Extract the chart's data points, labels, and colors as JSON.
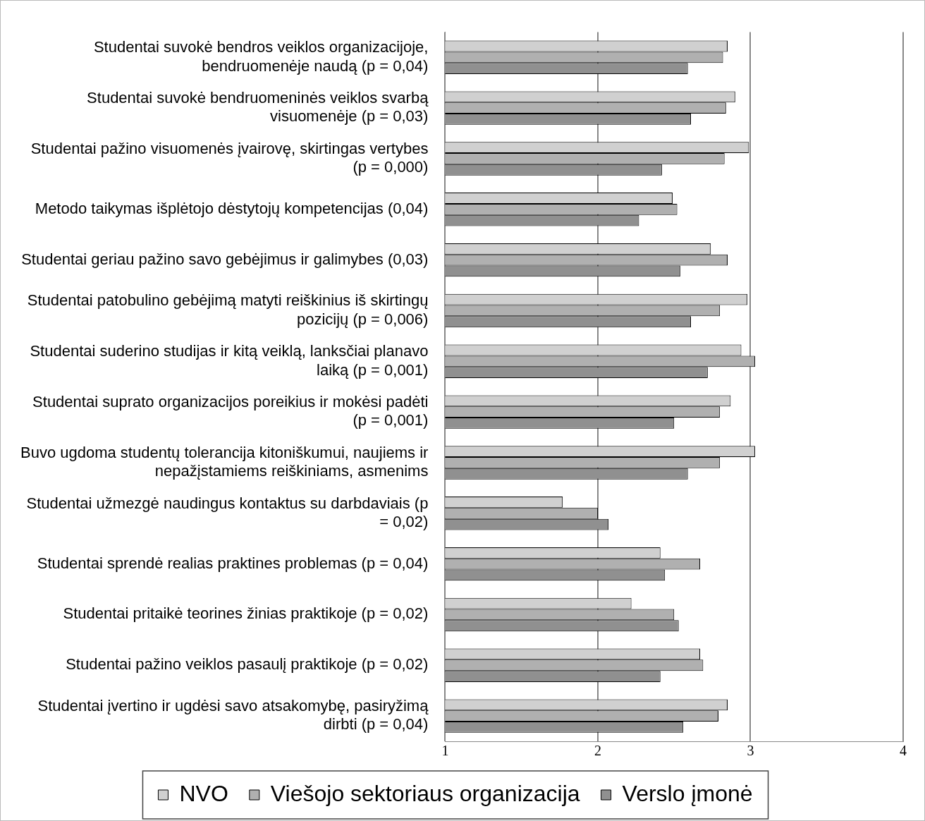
{
  "chart_data": {
    "type": "bar",
    "orientation": "horizontal",
    "categories": [
      "Studentai suvokė bendros veiklos organizacijoje, bendruomenėje naudą (p = 0,04)",
      "Studentai suvokė bendruomeninės veiklos svarbą visuomenėje (p = 0,03)",
      "Studentai pažino visuomenės įvairovę, skirtingas vertybes (p = 0,000)",
      "Metodo taikymas išplėtojo dėstytojų kompetencijas (0,04)",
      "Studentai geriau pažino savo gebėjimus ir galimybes (0,03)",
      "Studentai patobulino gebėjimą matyti reiškinius iš skirtingų pozicijų (p = 0,006)",
      "Studentai suderino studijas ir kitą veiklą, lanksčiai planavo laiką (p = 0,001)",
      "Studentai suprato organizacijos poreikius ir mokėsi padėti (p = 0,001)",
      "Buvo ugdoma studentų tolerancija kitoniškumui, naujiems ir nepažįstamiems reiškiniams, asmenims",
      "Studentai užmezgė naudingus kontaktus su darbdaviais (p = 0,02)",
      "Studentai sprendė realias praktines problemas (p = 0,04)",
      "Studentai pritaikė teorines žinias praktikoje (p = 0,02)",
      "Studentai pažino veiklos pasaulį praktikoje (p = 0,02)",
      "Studentai įvertino ir ugdėsi savo atsakomybę, pasiryžimą dirbti (p = 0,04)"
    ],
    "series": [
      {
        "name": "NVO",
        "color": "#d0d0d0",
        "values": [
          2.85,
          2.9,
          2.99,
          2.49,
          2.74,
          2.98,
          2.94,
          2.87,
          3.03,
          1.77,
          2.41,
          2.22,
          2.67,
          2.85
        ]
      },
      {
        "name": "Viešojo sektoriaus organizacija",
        "color": "#b0b0b0",
        "values": [
          2.82,
          2.84,
          2.83,
          2.52,
          2.85,
          2.8,
          3.03,
          2.8,
          2.8,
          2.0,
          2.67,
          2.5,
          2.69,
          2.79
        ]
      },
      {
        "name": "Verslo įmonė",
        "color": "#909090",
        "values": [
          2.59,
          2.61,
          2.42,
          2.27,
          2.54,
          2.61,
          2.72,
          2.5,
          2.59,
          2.07,
          2.44,
          2.53,
          2.41,
          2.56
        ]
      }
    ],
    "xlim": [
      1,
      4
    ],
    "xticks": [
      1,
      2,
      3,
      4
    ],
    "grid": "x",
    "legend": "bottom"
  }
}
